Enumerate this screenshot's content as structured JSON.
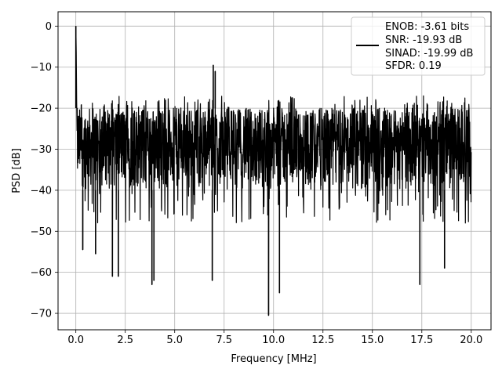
{
  "chart_data": {
    "type": "line",
    "title": "",
    "xlabel": "Frequency [MHz]",
    "ylabel": "PSD [dB]",
    "xlim": [
      -0.9,
      21.0
    ],
    "ylim": [
      -74.0,
      3.5
    ],
    "xticks": [
      0.0,
      2.5,
      5.0,
      7.5,
      10.0,
      12.5,
      15.0,
      17.5,
      20.0
    ],
    "xtick_labels": [
      "0.0",
      "2.5",
      "5.0",
      "7.5",
      "10.0",
      "12.5",
      "15.0",
      "17.5",
      "20.0"
    ],
    "yticks": [
      0,
      -10,
      -20,
      -30,
      -40,
      -50,
      -60,
      -70
    ],
    "ytick_labels": [
      "0",
      "−10",
      "−20",
      "−30",
      "−40",
      "−50",
      "−60",
      "−70"
    ],
    "grid": true,
    "legend_position": "upper-right",
    "series_color": "#000000",
    "legend": {
      "lines": [
        "ENOB: -3.61 bits",
        "SNR: -19.93 dB",
        "SINAD: -19.99 dB",
        "SFDR: 0.19"
      ]
    },
    "series": [
      {
        "noise_floor": {
          "x_range": [
            0.0,
            20.0
          ],
          "upper_envelope_db": -20.0,
          "lower_envelope_db": -40.0,
          "median_db": -28.0
        },
        "peaks": [
          {
            "x": 0.0,
            "y": 0.0
          },
          {
            "x": 0.05,
            "y": -6.5
          },
          {
            "x": 6.95,
            "y": -9.5
          },
          {
            "x": 7.05,
            "y": -11.0
          }
        ],
        "dips": [
          {
            "x": 0.35,
            "y": -54.5
          },
          {
            "x": 1.0,
            "y": -55.5
          },
          {
            "x": 1.85,
            "y": -61.0
          },
          {
            "x": 2.15,
            "y": -61.0
          },
          {
            "x": 3.85,
            "y": -63.0
          },
          {
            "x": 3.95,
            "y": -62.0
          },
          {
            "x": 6.9,
            "y": -62.0
          },
          {
            "x": 9.75,
            "y": -70.5
          },
          {
            "x": 10.3,
            "y": -65.0
          },
          {
            "x": 17.4,
            "y": -63.0
          },
          {
            "x": 18.65,
            "y": -59.0
          }
        ]
      }
    ]
  }
}
